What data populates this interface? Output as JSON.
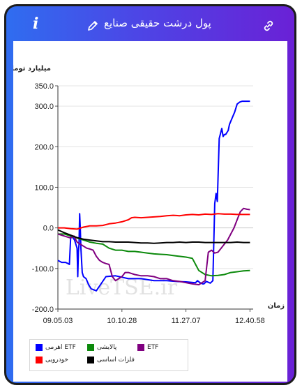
{
  "header": {
    "title": "پول درشت حقیقی صنایع",
    "info_icon": "info-icon",
    "edit_icon": "pencil-icon",
    "link_icon": "link-icon"
  },
  "colors": {
    "frame_gradient_start": "#2f6df0",
    "frame_gradient_end": "#6a21d6",
    "frame_border": "#1c1c1c"
  },
  "watermark": "LiveTSE.ir",
  "chart_data": {
    "type": "line",
    "ylabel": "میلیارد تومان",
    "xlabel": "زمان",
    "ylim": [
      -200,
      350
    ],
    "yticks": [
      "350.0",
      "300.0",
      "200.0",
      "100.0",
      "0.0",
      "-100.0",
      "-200.0"
    ],
    "ytick_values": [
      350,
      300,
      200,
      100,
      0,
      -100,
      -200
    ],
    "xticks": [
      "09.05.03",
      "10.10.28",
      "11.27.07",
      "12.40.58"
    ],
    "xtick_values": [
      0,
      100,
      200,
      300
    ],
    "xlim": [
      0,
      305
    ],
    "grid": "horizontal",
    "series": [
      {
        "name": "اهرمی ETF",
        "color": "#0000ff",
        "x": [
          0,
          6,
          12,
          16,
          18,
          20,
          24,
          26,
          30,
          31,
          32,
          33,
          34,
          35,
          36,
          38,
          40,
          44,
          48,
          52,
          60,
          75,
          90,
          110,
          130,
          150,
          170,
          185,
          200,
          215,
          218,
          222,
          226,
          228,
          232,
          238,
          242,
          245,
          247,
          249,
          252,
          256,
          258,
          260,
          262,
          266,
          268,
          272,
          276,
          280,
          284,
          288,
          292,
          296,
          300
        ],
        "values": [
          -80,
          -85,
          -85,
          -88,
          -90,
          -20,
          -25,
          -30,
          -50,
          -120,
          -60,
          -40,
          35,
          0,
          -50,
          -110,
          -120,
          -125,
          -140,
          -150,
          -155,
          -120,
          -118,
          -125,
          -125,
          -130,
          -130,
          -132,
          -133,
          -135,
          -130,
          -135,
          -138,
          -138,
          -132,
          -136,
          -130,
          60,
          85,
          65,
          220,
          245,
          225,
          230,
          230,
          240,
          255,
          270,
          285,
          305,
          310,
          312,
          312,
          312,
          312
        ]
      },
      {
        "name": "پالایشی",
        "color": "#0c8a0c",
        "x": [
          0,
          10,
          20,
          30,
          40,
          50,
          60,
          70,
          80,
          90,
          100,
          110,
          120,
          130,
          140,
          150,
          160,
          170,
          180,
          190,
          200,
          210,
          215,
          220,
          230,
          240,
          250,
          260,
          270,
          280,
          290,
          300
        ],
        "values": [
          -15,
          -15,
          -20,
          -25,
          -30,
          -35,
          -38,
          -40,
          -50,
          -55,
          -55,
          -58,
          -58,
          -60,
          -62,
          -64,
          -65,
          -66,
          -68,
          -70,
          -72,
          -75,
          -90,
          -105,
          -115,
          -118,
          -117,
          -115,
          -110,
          -108,
          -106,
          -105
        ]
      },
      {
        "name": "ETF",
        "color": "#800080",
        "x": [
          0,
          10,
          20,
          25,
          30,
          35,
          40,
          45,
          50,
          55,
          60,
          65,
          70,
          75,
          80,
          85,
          90,
          95,
          100,
          105,
          110,
          120,
          130,
          140,
          150,
          160,
          170,
          180,
          190,
          200,
          210,
          220,
          230,
          235,
          240,
          245,
          250,
          255,
          260,
          265,
          270,
          275,
          280,
          285,
          290,
          295,
          300
        ],
        "values": [
          -15,
          -20,
          -25,
          -20,
          -35,
          -40,
          -45,
          -50,
          -52,
          -55,
          -70,
          -80,
          -85,
          -88,
          -90,
          -120,
          -130,
          -125,
          -120,
          -110,
          -110,
          -115,
          -118,
          -118,
          -120,
          -125,
          -125,
          -130,
          -132,
          -135,
          -138,
          -140,
          -130,
          -60,
          -55,
          -62,
          -60,
          -50,
          -40,
          -30,
          -15,
          0,
          20,
          40,
          48,
          46,
          45
        ]
      },
      {
        "name": "خودرویی",
        "color": "#ff0000",
        "x": [
          0,
          10,
          20,
          30,
          40,
          50,
          60,
          70,
          80,
          90,
          100,
          110,
          115,
          120,
          130,
          140,
          150,
          160,
          170,
          180,
          190,
          200,
          210,
          220,
          230,
          240,
          250,
          260,
          270,
          280,
          290,
          300
        ],
        "values": [
          0,
          0,
          -2,
          -3,
          2,
          5,
          5,
          6,
          10,
          12,
          15,
          20,
          25,
          26,
          25,
          26,
          27,
          28,
          30,
          31,
          30,
          32,
          33,
          32,
          34,
          33,
          35,
          34,
          34,
          33,
          33,
          33
        ]
      },
      {
        "name": "فلزات اساسی",
        "color": "#000000",
        "x": [
          0,
          10,
          20,
          30,
          40,
          50,
          60,
          70,
          80,
          90,
          100,
          110,
          120,
          130,
          140,
          150,
          160,
          170,
          180,
          190,
          200,
          210,
          220,
          230,
          240,
          250,
          260,
          270,
          280,
          290,
          300
        ],
        "values": [
          -5,
          -12,
          -18,
          -24,
          -28,
          -30,
          -32,
          -34,
          -34,
          -35,
          -35,
          -35,
          -36,
          -37,
          -37,
          -38,
          -37,
          -36,
          -36,
          -35,
          -36,
          -35,
          -35,
          -36,
          -36,
          -36,
          -36,
          -36,
          -35,
          -36,
          -36
        ]
      }
    ],
    "legend_layout": [
      {
        "series": 0,
        "col": 0,
        "row": 0
      },
      {
        "series": 1,
        "col": 1,
        "row": 0
      },
      {
        "series": 2,
        "col": 2,
        "row": 0
      },
      {
        "series": 3,
        "col": 0,
        "row": 1
      },
      {
        "series": 4,
        "col": 1,
        "row": 1
      }
    ]
  }
}
